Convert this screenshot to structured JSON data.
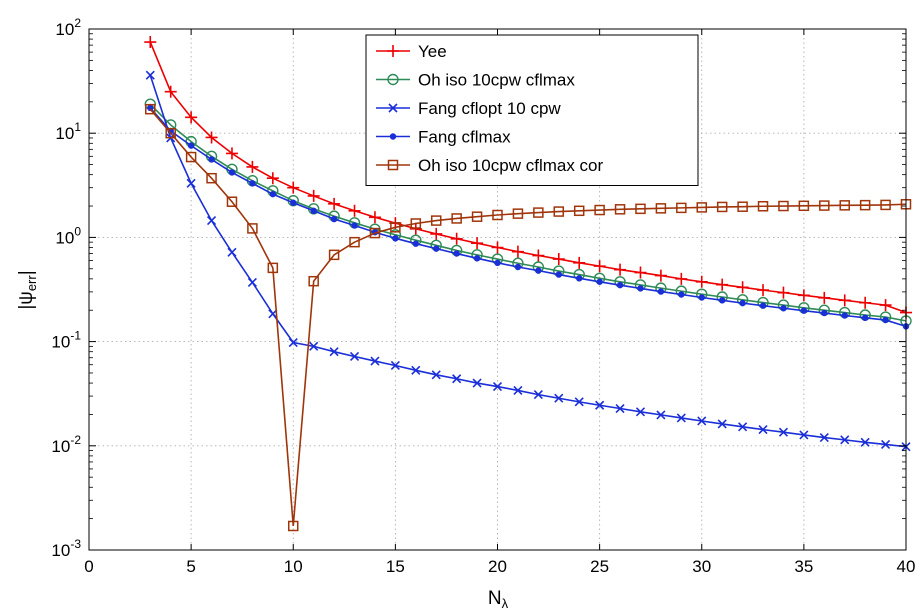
{
  "chart_data": {
    "type": "line",
    "title": "",
    "xlabel": "N",
    "xlabel_sub": "λ",
    "ylabel": "|ψ",
    "ylabel_sub": "err",
    "ylabel_suffix": "|",
    "xlim": [
      0,
      40
    ],
    "ylim": [
      0.001,
      100
    ],
    "yscale": "log",
    "grid": true,
    "legend_position": "top-center",
    "x_ticks": [
      "0",
      "5",
      "10",
      "15",
      "20",
      "25",
      "30",
      "35",
      "40"
    ],
    "y_ticks": [
      {
        "base": "10",
        "exp": "-3"
      },
      {
        "base": "10",
        "exp": "-2"
      },
      {
        "base": "10",
        "exp": "-1"
      },
      {
        "base": "10",
        "exp": "0"
      },
      {
        "base": "10",
        "exp": "1"
      },
      {
        "base": "10",
        "exp": "2"
      }
    ],
    "x": [
      3,
      4,
      5,
      6,
      7,
      8,
      9,
      10,
      11,
      12,
      13,
      14,
      15,
      16,
      17,
      18,
      19,
      20,
      21,
      22,
      23,
      24,
      25,
      26,
      27,
      28,
      29,
      30,
      31,
      32,
      33,
      34,
      35,
      36,
      37,
      38,
      39,
      40
    ],
    "series": [
      {
        "name": "Yee",
        "color": "#ee0000",
        "marker": "plus",
        "values": [
          75,
          25,
          14.2,
          9.1,
          6.4,
          4.75,
          3.7,
          3.0,
          2.5,
          2.1,
          1.8,
          1.56,
          1.37,
          1.21,
          1.08,
          0.97,
          0.88,
          0.8,
          0.73,
          0.67,
          0.62,
          0.57,
          0.53,
          0.49,
          0.46,
          0.43,
          0.4,
          0.375,
          0.352,
          0.332,
          0.312,
          0.295,
          0.278,
          0.263,
          0.249,
          0.236,
          0.224,
          0.19
        ]
      },
      {
        "name": "Oh iso 10cpw cflmax",
        "color": "#2e8b57",
        "marker": "circle",
        "values": [
          19,
          12,
          8.3,
          6.0,
          4.5,
          3.5,
          2.8,
          2.25,
          1.88,
          1.6,
          1.38,
          1.2,
          1.06,
          0.94,
          0.84,
          0.75,
          0.68,
          0.62,
          0.565,
          0.52,
          0.475,
          0.44,
          0.405,
          0.375,
          0.35,
          0.326,
          0.305,
          0.285,
          0.268,
          0.252,
          0.237,
          0.224,
          0.211,
          0.2,
          0.19,
          0.18,
          0.172,
          0.158
        ]
      },
      {
        "name": "Fang cflopt 10 cpw",
        "color": "#1a2fd8",
        "marker": "x",
        "values": [
          36,
          9,
          3.3,
          1.45,
          0.72,
          0.37,
          0.185,
          0.098,
          0.09,
          0.08,
          0.072,
          0.065,
          0.059,
          0.053,
          0.048,
          0.044,
          0.04,
          0.037,
          0.034,
          0.031,
          0.0286,
          0.0264,
          0.0245,
          0.0228,
          0.0212,
          0.0198,
          0.0185,
          0.0173,
          0.0162,
          0.0152,
          0.0143,
          0.0135,
          0.0127,
          0.012,
          0.0114,
          0.0108,
          0.0103,
          0.0098
        ]
      },
      {
        "name": "Fang cflmax",
        "color": "#1a2fd8",
        "marker": "dot",
        "values": [
          17.5,
          10.5,
          7.6,
          5.6,
          4.2,
          3.3,
          2.6,
          2.15,
          1.8,
          1.5,
          1.3,
          1.12,
          0.98,
          0.87,
          0.78,
          0.7,
          0.63,
          0.57,
          0.52,
          0.48,
          0.44,
          0.405,
          0.375,
          0.348,
          0.324,
          0.302,
          0.283,
          0.265,
          0.249,
          0.234,
          0.221,
          0.209,
          0.198,
          0.188,
          0.178,
          0.169,
          0.161,
          0.14
        ]
      },
      {
        "name": "Oh iso 10cpw cflmax cor",
        "color": "#a0350a",
        "marker": "square",
        "values": [
          17,
          10,
          5.9,
          3.7,
          2.2,
          1.22,
          0.51,
          0.0017,
          0.38,
          0.68,
          0.9,
          1.1,
          1.25,
          1.36,
          1.45,
          1.52,
          1.58,
          1.64,
          1.69,
          1.73,
          1.77,
          1.8,
          1.83,
          1.86,
          1.88,
          1.9,
          1.92,
          1.94,
          1.96,
          1.97,
          1.99,
          2.0,
          2.01,
          2.02,
          2.03,
          2.04,
          2.05,
          2.08
        ]
      }
    ]
  }
}
